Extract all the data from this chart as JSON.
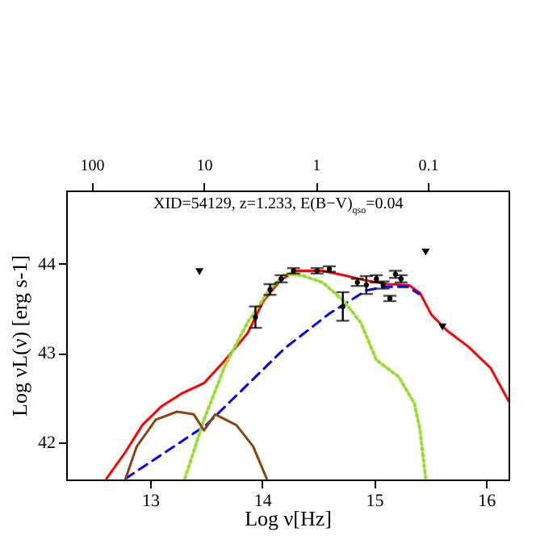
{
  "chart_data": {
    "type": "line",
    "xlabel": "Log ν[Hz]",
    "ylabel": "Log νL(ν) [erg s-1]",
    "annotations": [
      "XID=54129, z=1.233, E(B−V)$_{qso}$=0.04"
    ],
    "xlim": [
      12.25,
      16.2
    ],
    "xticks": [
      13,
      14,
      15,
      16
    ],
    "ylim": [
      41.58,
      44.82
    ],
    "yticks": [
      42,
      43,
      44
    ],
    "x2lim": [
      169,
      0.019
    ],
    "x2ticks": [
      100,
      10,
      1,
      0.1
    ],
    "log": "x2",
    "grid": false,
    "series": [
      {
        "color": "#ff0000",
        "line_style": "solid",
        "x": [
          12.61,
          12.78,
          12.93,
          13.1,
          13.29,
          13.48,
          13.67,
          13.87,
          14.01,
          14.16,
          14.3,
          14.54,
          14.73,
          14.93,
          15.12,
          15.31,
          15.41,
          15.51,
          15.65,
          15.84,
          16.04,
          16.2
        ],
        "values": [
          41.59,
          41.89,
          42.19,
          42.4,
          42.55,
          42.66,
          42.92,
          43.22,
          43.58,
          43.81,
          43.92,
          43.92,
          43.87,
          43.81,
          43.77,
          43.76,
          43.67,
          43.43,
          43.25,
          43.07,
          42.83,
          42.46
        ]
      },
      {
        "color": "#0000ff",
        "line_style": "dashed",
        "x": [
          12.78,
          13.5,
          14.2,
          14.6,
          14.93,
          15.1,
          15.3,
          15.4
        ],
        "values": [
          41.59,
          42.19,
          43.05,
          43.44,
          43.7,
          43.74,
          43.74,
          43.66
        ]
      },
      {
        "color": "#99dd33",
        "line_style": "dotted",
        "x": [
          13.31,
          13.48,
          13.67,
          13.87,
          14.06,
          14.2,
          14.35,
          14.54,
          14.73,
          14.88,
          15.02,
          15.22,
          15.36,
          15.41,
          15.46
        ],
        "values": [
          41.59,
          42.25,
          42.86,
          43.34,
          43.7,
          43.88,
          43.87,
          43.79,
          43.58,
          43.34,
          42.92,
          42.73,
          42.43,
          42.13,
          41.59
        ]
      },
      {
        "color": "#8b4513",
        "line_style": "solid",
        "x": [
          12.78,
          12.88,
          13.05,
          13.24,
          13.39,
          13.48,
          13.58,
          13.77,
          13.92,
          14.04
        ],
        "values": [
          41.59,
          41.95,
          42.25,
          42.34,
          42.31,
          42.13,
          42.31,
          42.19,
          41.95,
          41.59
        ]
      },
      {
        "type": "scatter",
        "color": "#000000",
        "marker": "circle",
        "x": [
          13.94,
          14.07,
          14.17,
          14.28,
          14.49,
          14.6,
          14.72,
          14.85,
          14.93,
          15.02,
          15.08,
          15.14,
          15.19,
          15.24
        ],
        "values": [
          43.4,
          43.71,
          43.83,
          43.92,
          43.92,
          43.94,
          43.52,
          43.79,
          43.76,
          43.83,
          43.76,
          43.61,
          43.88,
          43.83
        ],
        "errors": [
          0.12,
          0.06,
          0.04,
          0.03,
          0.03,
          0.03,
          0.16,
          0.04,
          0.1,
          0.04,
          0.04,
          0.03,
          0.04,
          0.04
        ]
      },
      {
        "type": "scatter",
        "color": "#000000",
        "marker": "triangle",
        "x": [
          13.44,
          15.46,
          15.61
        ],
        "values": [
          43.91,
          44.13,
          43.29
        ]
      }
    ]
  }
}
